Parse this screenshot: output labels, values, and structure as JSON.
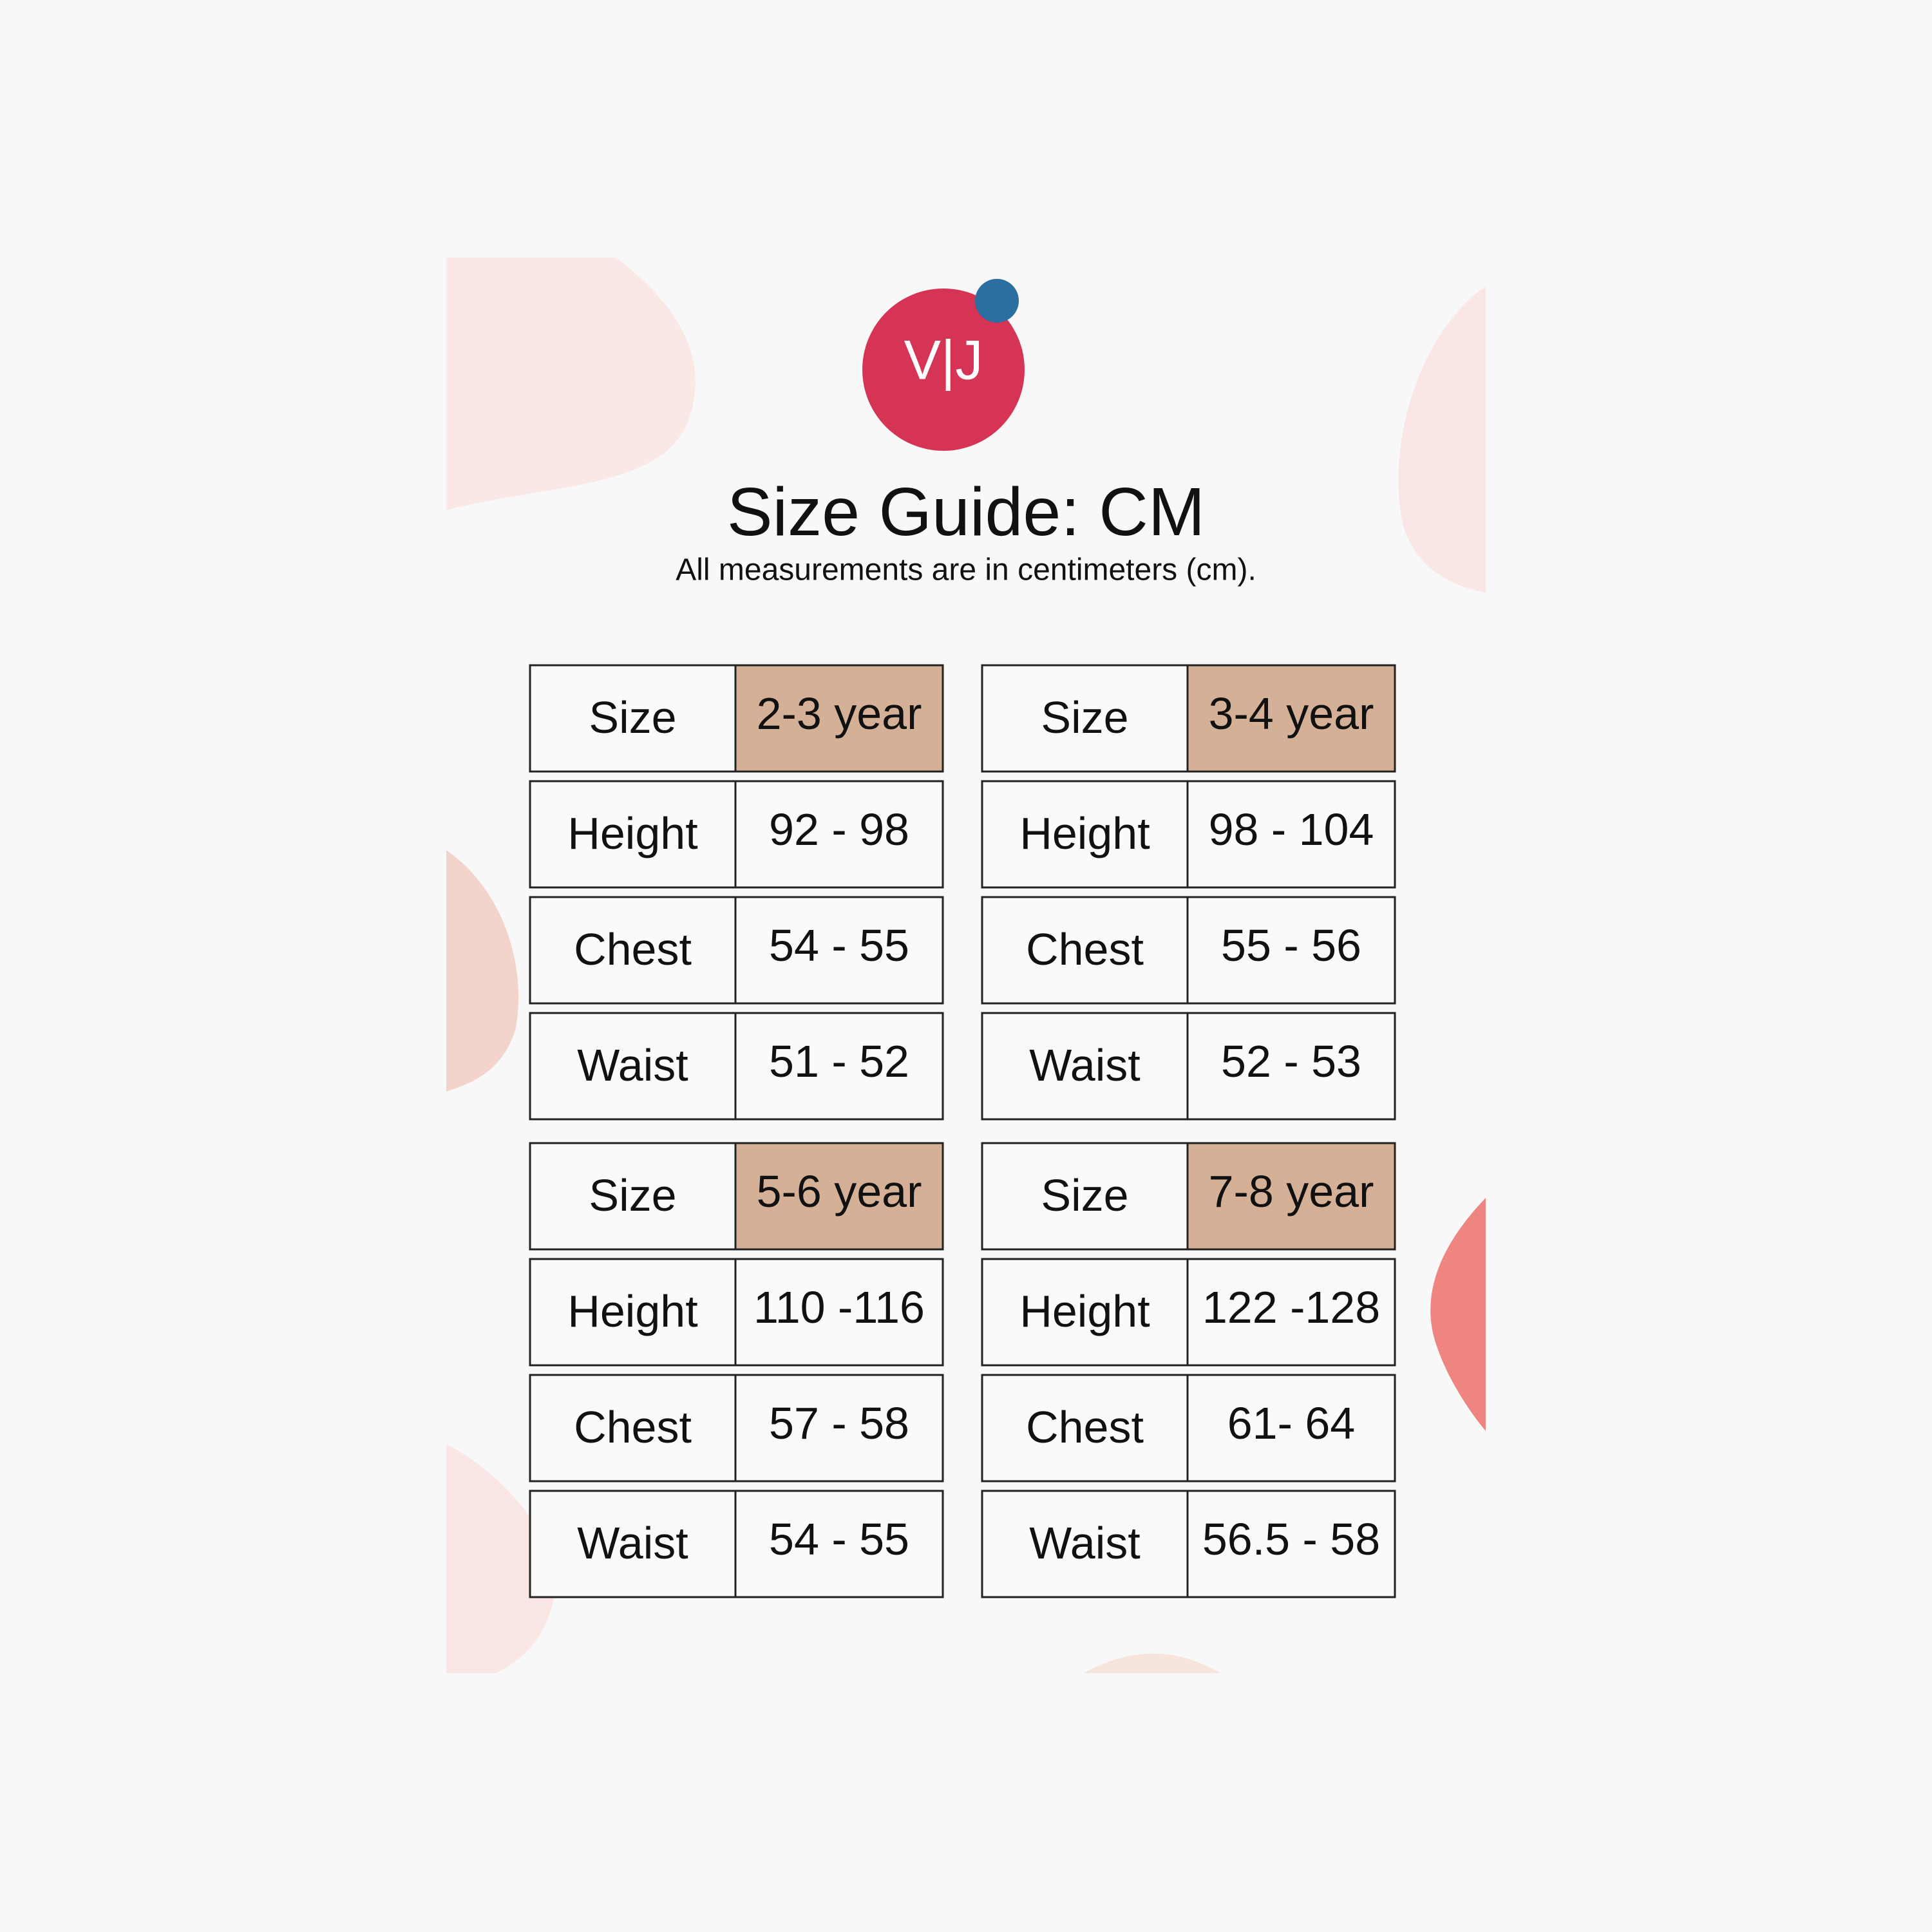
{
  "logo": {
    "text": "V|J"
  },
  "header": {
    "title": "Size Guide: CM",
    "subtitle": "All measurements are in centimeters (cm)."
  },
  "tables": [
    {
      "rows": [
        [
          "Size",
          "2-3 year"
        ],
        [
          "Height",
          "92 - 98"
        ],
        [
          "Chest",
          "54 - 55"
        ],
        [
          "Waist",
          "51 - 52"
        ]
      ]
    },
    {
      "rows": [
        [
          "Size",
          "3-4 year"
        ],
        [
          "Height",
          "98 - 104"
        ],
        [
          "Chest",
          "55 - 56"
        ],
        [
          "Waist",
          "52 - 53"
        ]
      ]
    },
    {
      "rows": [
        [
          "Size",
          "5-6 year"
        ],
        [
          "Height",
          "110 -116"
        ],
        [
          "Chest",
          "57 - 58"
        ],
        [
          "Waist",
          "54 - 55"
        ]
      ]
    },
    {
      "rows": [
        [
          "Size",
          "7-8 year"
        ],
        [
          "Height",
          "122 -128"
        ],
        [
          "Chest",
          "61- 64"
        ],
        [
          "Waist",
          "56.5 - 58"
        ]
      ]
    }
  ]
}
